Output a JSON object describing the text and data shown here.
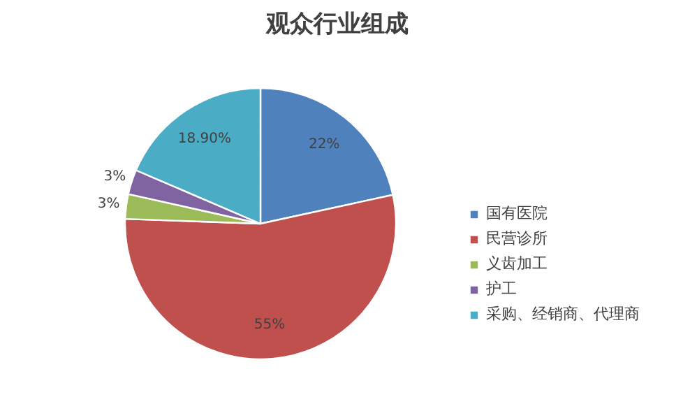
{
  "chart_data": {
    "type": "pie",
    "title": "观众行业组成",
    "categories": [
      "国有医院",
      "民营诊所",
      "义齿加工",
      "护工",
      "采购、经销商、代理商"
    ],
    "values": [
      22,
      55,
      3,
      3,
      18.9
    ],
    "colors": [
      "#4f81bd",
      "#c0504d",
      "#9bbb59",
      "#8064a2",
      "#4bacc6"
    ],
    "value_labels": [
      "22%",
      "55%",
      "3%",
      "3%",
      "18.90%"
    ],
    "legend": "right"
  }
}
